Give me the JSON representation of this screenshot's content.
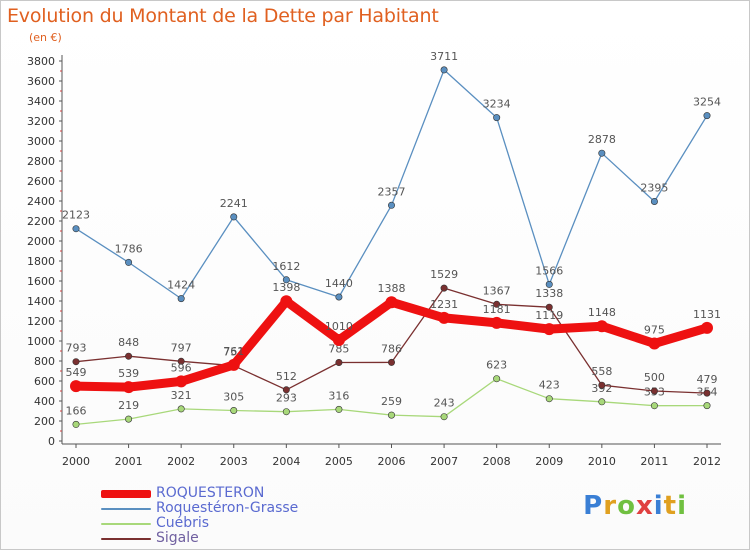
{
  "title": "Evolution du Montant de la Dette par Habitant",
  "subtitle": "(en €)",
  "logo": {
    "text": "Proxiti",
    "colors": [
      "#3a7fd5",
      "#e0a020",
      "#70c040",
      "#e04040",
      "#3a7fd5",
      "#e0a020",
      "#70c040"
    ]
  },
  "chart_data": {
    "type": "line",
    "x": [
      "2000",
      "2001",
      "2002",
      "2003",
      "2004",
      "2005",
      "2006",
      "2007",
      "2008",
      "2009",
      "2010",
      "2011",
      "2012"
    ],
    "ylim": [
      0,
      3800
    ],
    "yticks": [
      0,
      200,
      400,
      600,
      800,
      1000,
      1200,
      1400,
      1600,
      1800,
      2000,
      2200,
      2400,
      2600,
      2800,
      3000,
      3200,
      3400,
      3600,
      3800
    ],
    "grid": false,
    "legend_position": "bottom",
    "series": [
      {
        "name": "Roquestéron-Grasse",
        "color": "#5a8fc0",
        "values": [
          2123,
          1786,
          1424,
          2241,
          1612,
          1440,
          2357,
          3711,
          3234,
          1566,
          2878,
          2395,
          3254
        ]
      },
      {
        "name": "Cuébris",
        "color": "#a8d87a",
        "values": [
          166,
          219,
          321,
          305,
          293,
          316,
          259,
          243,
          623,
          423,
          392,
          353,
          354
        ]
      },
      {
        "name": "Sigale",
        "color": "#7a3030",
        "values": [
          793,
          848,
          797,
          753,
          512,
          785,
          786,
          1529,
          1367,
          1338,
          558,
          500,
          479
        ]
      },
      {
        "name": "ROQUESTERON",
        "color": "#ee1111",
        "values": [
          549,
          539,
          596,
          761,
          1398,
          1010,
          1388,
          1231,
          1181,
          1119,
          1148,
          975,
          1131
        ]
      }
    ]
  }
}
